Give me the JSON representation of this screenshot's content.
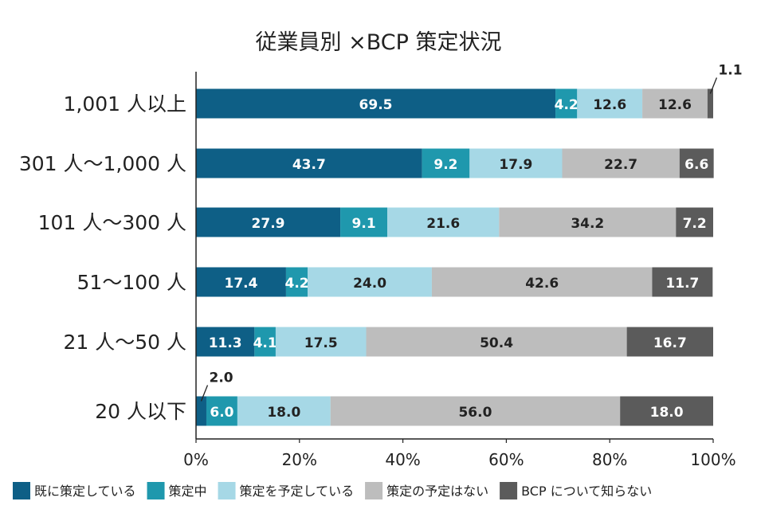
{
  "chart_data": {
    "type": "bar",
    "orientation": "horizontal",
    "stacked": true,
    "title": "従業員別 ×BCP 策定状況",
    "categories": [
      "1,001 人以上",
      "301 人〜1,000 人",
      "101 人〜300 人",
      "51〜100 人",
      "21 人〜50 人",
      "20 人以下"
    ],
    "series": [
      {
        "name": "既に策定している",
        "color": "#0e5f86",
        "values": [
          69.5,
          43.7,
          27.9,
          17.4,
          11.3,
          2.0
        ]
      },
      {
        "name": "策定中",
        "color": "#1f98ad",
        "values": [
          4.2,
          9.2,
          9.1,
          4.2,
          4.1,
          6.0
        ]
      },
      {
        "name": "策定を予定している",
        "color": "#a6d8e6",
        "values": [
          12.6,
          17.9,
          21.6,
          24.0,
          17.5,
          18.0
        ]
      },
      {
        "name": "策定の予定はない",
        "color": "#bdbdbd",
        "values": [
          12.6,
          22.7,
          34.2,
          42.6,
          50.4,
          56.0
        ]
      },
      {
        "name": "BCP について知らない",
        "color": "#5b5b5b",
        "values": [
          1.1,
          6.6,
          7.2,
          11.7,
          16.7,
          18.0
        ]
      }
    ],
    "xlim": [
      0,
      100
    ],
    "x_ticks": [
      "0%",
      "20%",
      "40%",
      "60%",
      "80%",
      "100%"
    ],
    "xlabel": "",
    "ylabel": "",
    "grid": false,
    "legend_position": "bottom"
  }
}
